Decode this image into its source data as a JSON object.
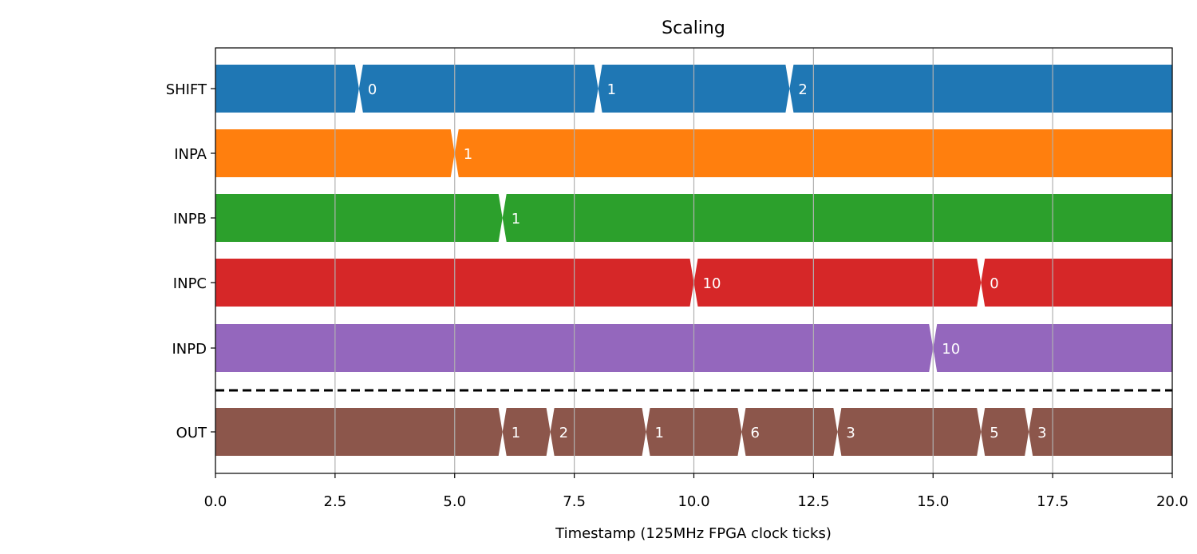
{
  "chart_data": {
    "type": "timing",
    "title": "Scaling",
    "xlabel": "Timestamp (125MHz FPGA clock ticks)",
    "ylabel": "",
    "xlim": [
      0,
      20
    ],
    "xticks": [
      "0.0",
      "2.5",
      "5.0",
      "7.5",
      "10.0",
      "12.5",
      "15.0",
      "17.5",
      "20.0"
    ],
    "grid": "vertical",
    "separator": "dashed line between INPD and OUT",
    "signals": [
      {
        "name": "SHIFT",
        "color": "#1f77b4",
        "changes": [
          {
            "t": 3,
            "value": "0"
          },
          {
            "t": 8,
            "value": "1"
          },
          {
            "t": 12,
            "value": "2"
          }
        ]
      },
      {
        "name": "INPA",
        "color": "#ff7f0e",
        "changes": [
          {
            "t": 5,
            "value": "1"
          }
        ]
      },
      {
        "name": "INPB",
        "color": "#2ca02c",
        "changes": [
          {
            "t": 6,
            "value": "1"
          }
        ]
      },
      {
        "name": "INPC",
        "color": "#d62728",
        "changes": [
          {
            "t": 10,
            "value": "10"
          },
          {
            "t": 16,
            "value": "0"
          }
        ]
      },
      {
        "name": "INPD",
        "color": "#9467bd",
        "changes": [
          {
            "t": 15,
            "value": "10"
          }
        ]
      },
      {
        "name": "OUT",
        "color": "#8c564b",
        "changes": [
          {
            "t": 6,
            "value": "1"
          },
          {
            "t": 7,
            "value": "2"
          },
          {
            "t": 9,
            "value": "1"
          },
          {
            "t": 11,
            "value": "6"
          },
          {
            "t": 13,
            "value": "3"
          },
          {
            "t": 16,
            "value": "5"
          },
          {
            "t": 17,
            "value": "3"
          }
        ]
      }
    ]
  }
}
